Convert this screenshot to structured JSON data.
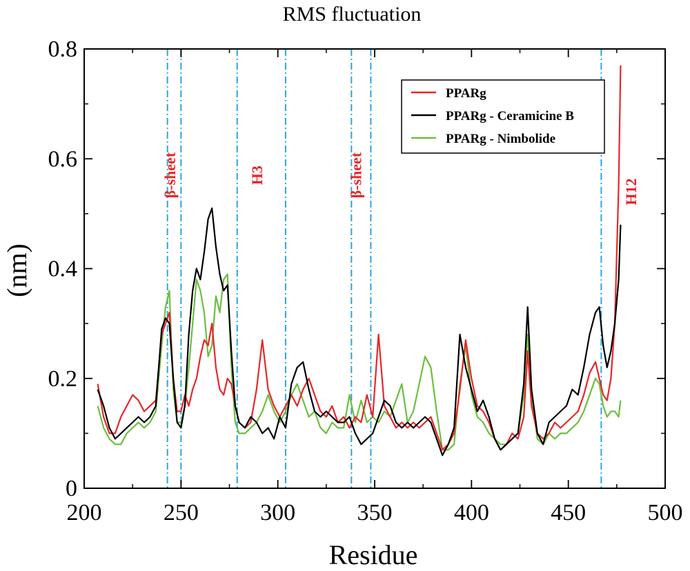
{
  "chart_data": {
    "type": "line",
    "title": "RMS fluctuation",
    "xlabel": "Residue",
    "ylabel": "(nm)",
    "xlim": [
      200,
      500
    ],
    "ylim": [
      0,
      0.8
    ],
    "xticks": [
      200,
      250,
      300,
      350,
      400,
      450,
      500
    ],
    "xtick_labels": [
      "200",
      "250",
      "300",
      "350",
      "400",
      "450",
      "500"
    ],
    "yticks": [
      0,
      0.2,
      0.4,
      0.6,
      0.8
    ],
    "ytick_labels": [
      "0",
      "0.2",
      "0.4",
      "0.6",
      "0.8"
    ],
    "grid": false,
    "legend_position": "top-right",
    "region_lines": [
      243,
      250,
      279,
      304,
      338,
      348,
      467
    ],
    "region_labels": [
      {
        "text": "β-sheet",
        "x": 247,
        "y": 0.57
      },
      {
        "text": "H3",
        "x": 292,
        "y": 0.57
      },
      {
        "text": "β-sheet",
        "x": 343,
        "y": 0.57
      },
      {
        "text": "H12",
        "x": 485,
        "y": 0.54
      }
    ],
    "x": [
      207,
      210,
      213,
      216,
      219,
      222,
      225,
      228,
      231,
      234,
      237,
      240,
      242,
      244,
      246,
      248,
      250,
      252,
      254,
      256,
      258,
      260,
      262,
      264,
      266,
      268,
      270,
      272,
      274,
      276,
      278,
      280,
      283,
      286,
      289,
      292,
      295,
      298,
      301,
      304,
      307,
      310,
      313,
      316,
      319,
      322,
      325,
      328,
      331,
      334,
      337,
      340,
      343,
      346,
      349,
      352,
      355,
      358,
      361,
      364,
      367,
      370,
      373,
      376,
      379,
      382,
      385,
      388,
      391,
      394,
      397,
      400,
      403,
      406,
      409,
      412,
      415,
      418,
      421,
      424,
      427,
      429,
      431,
      434,
      437,
      440,
      443,
      446,
      449,
      452,
      455,
      458,
      461,
      464,
      466,
      468,
      470,
      472,
      474,
      476,
      477
    ],
    "series": [
      {
        "name": "PPARg",
        "color": "#e8262a",
        "values": [
          0.19,
          0.13,
          0.1,
          0.1,
          0.13,
          0.15,
          0.17,
          0.16,
          0.14,
          0.15,
          0.16,
          0.28,
          0.3,
          0.32,
          0.2,
          0.14,
          0.14,
          0.17,
          0.15,
          0.18,
          0.2,
          0.24,
          0.27,
          0.26,
          0.3,
          0.22,
          0.18,
          0.17,
          0.2,
          0.19,
          0.15,
          0.12,
          0.11,
          0.12,
          0.18,
          0.27,
          0.18,
          0.15,
          0.13,
          0.15,
          0.17,
          0.15,
          0.18,
          0.2,
          0.17,
          0.14,
          0.13,
          0.15,
          0.12,
          0.13,
          0.11,
          0.13,
          0.12,
          0.17,
          0.13,
          0.28,
          0.15,
          0.13,
          0.11,
          0.12,
          0.11,
          0.12,
          0.11,
          0.12,
          0.13,
          0.1,
          0.07,
          0.08,
          0.1,
          0.18,
          0.27,
          0.2,
          0.15,
          0.14,
          0.12,
          0.09,
          0.07,
          0.08,
          0.1,
          0.09,
          0.13,
          0.25,
          0.15,
          0.1,
          0.09,
          0.1,
          0.12,
          0.11,
          0.12,
          0.13,
          0.14,
          0.17,
          0.21,
          0.23,
          0.2,
          0.17,
          0.16,
          0.2,
          0.3,
          0.55,
          0.77
        ]
      },
      {
        "name": "PPARg - Ceramicine B",
        "color": "#000000",
        "values": [
          0.18,
          0.15,
          0.11,
          0.09,
          0.1,
          0.11,
          0.12,
          0.13,
          0.12,
          0.13,
          0.15,
          0.29,
          0.31,
          0.3,
          0.2,
          0.12,
          0.11,
          0.15,
          0.28,
          0.36,
          0.4,
          0.38,
          0.43,
          0.49,
          0.51,
          0.44,
          0.39,
          0.36,
          0.37,
          0.25,
          0.15,
          0.12,
          0.11,
          0.13,
          0.12,
          0.1,
          0.11,
          0.09,
          0.13,
          0.11,
          0.19,
          0.22,
          0.23,
          0.18,
          0.14,
          0.13,
          0.14,
          0.13,
          0.12,
          0.12,
          0.13,
          0.1,
          0.08,
          0.09,
          0.1,
          0.13,
          0.16,
          0.15,
          0.12,
          0.11,
          0.12,
          0.11,
          0.12,
          0.13,
          0.12,
          0.09,
          0.06,
          0.08,
          0.11,
          0.28,
          0.22,
          0.18,
          0.14,
          0.16,
          0.13,
          0.09,
          0.07,
          0.08,
          0.09,
          0.1,
          0.19,
          0.33,
          0.18,
          0.1,
          0.08,
          0.12,
          0.13,
          0.14,
          0.15,
          0.18,
          0.17,
          0.22,
          0.28,
          0.32,
          0.33,
          0.26,
          0.22,
          0.25,
          0.3,
          0.38,
          0.48
        ]
      },
      {
        "name": "PPARg - Nimbolide",
        "color": "#6cbf3f",
        "values": [
          0.15,
          0.11,
          0.09,
          0.08,
          0.08,
          0.1,
          0.11,
          0.12,
          0.11,
          0.12,
          0.14,
          0.26,
          0.33,
          0.36,
          0.18,
          0.12,
          0.12,
          0.15,
          0.22,
          0.3,
          0.38,
          0.36,
          0.32,
          0.24,
          0.26,
          0.35,
          0.32,
          0.38,
          0.39,
          0.22,
          0.12,
          0.1,
          0.1,
          0.11,
          0.12,
          0.14,
          0.17,
          0.14,
          0.12,
          0.14,
          0.17,
          0.19,
          0.16,
          0.13,
          0.14,
          0.11,
          0.1,
          0.12,
          0.11,
          0.11,
          0.17,
          0.12,
          0.16,
          0.12,
          0.13,
          0.12,
          0.14,
          0.13,
          0.16,
          0.19,
          0.12,
          0.14,
          0.19,
          0.24,
          0.22,
          0.14,
          0.07,
          0.07,
          0.08,
          0.19,
          0.26,
          0.17,
          0.13,
          0.12,
          0.1,
          0.09,
          0.08,
          0.08,
          0.09,
          0.1,
          0.17,
          0.28,
          0.17,
          0.09,
          0.08,
          0.1,
          0.09,
          0.1,
          0.1,
          0.11,
          0.12,
          0.14,
          0.17,
          0.2,
          0.19,
          0.15,
          0.13,
          0.14,
          0.14,
          0.13,
          0.16
        ]
      }
    ]
  }
}
